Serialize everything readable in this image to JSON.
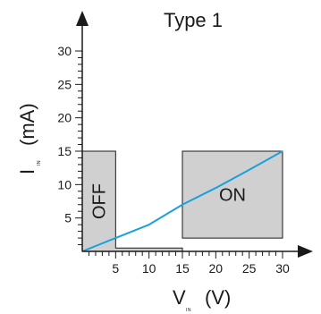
{
  "chart_data": {
    "type": "line",
    "title": "Type 1",
    "xlabel": {
      "main": "V",
      "sub": "IN",
      "unit": "(V)"
    },
    "ylabel": {
      "main": "I",
      "sub": "IN",
      "unit": "(mA)"
    },
    "xlim": [
      0,
      32
    ],
    "ylim": [
      0,
      33
    ],
    "x_ticks": [
      5,
      10,
      15,
      20,
      25,
      30
    ],
    "y_ticks": [
      5,
      10,
      15,
      20,
      25,
      30
    ],
    "x_minor_step": 1,
    "y_minor_step": 1,
    "grid": false,
    "series": [
      {
        "color": "#1aa0dc",
        "points": [
          [
            0,
            0
          ],
          [
            5,
            2
          ],
          [
            10,
            4
          ],
          [
            15,
            7
          ],
          [
            20,
            9.5
          ],
          [
            25,
            12.2
          ],
          [
            30,
            15
          ]
        ]
      }
    ],
    "regions": [
      {
        "label": "OFF",
        "orientation": "vertical",
        "color": "#d0d0d0",
        "polygon": [
          [
            0,
            15
          ],
          [
            5,
            15
          ],
          [
            5,
            0.5
          ],
          [
            15,
            0.5
          ],
          [
            15,
            0
          ],
          [
            0,
            0
          ]
        ]
      },
      {
        "label": "ON",
        "orientation": "horizontal",
        "color": "#d0d0d0",
        "polygon": [
          [
            15,
            15
          ],
          [
            30,
            15
          ],
          [
            30,
            2
          ],
          [
            15,
            2
          ]
        ]
      }
    ]
  }
}
